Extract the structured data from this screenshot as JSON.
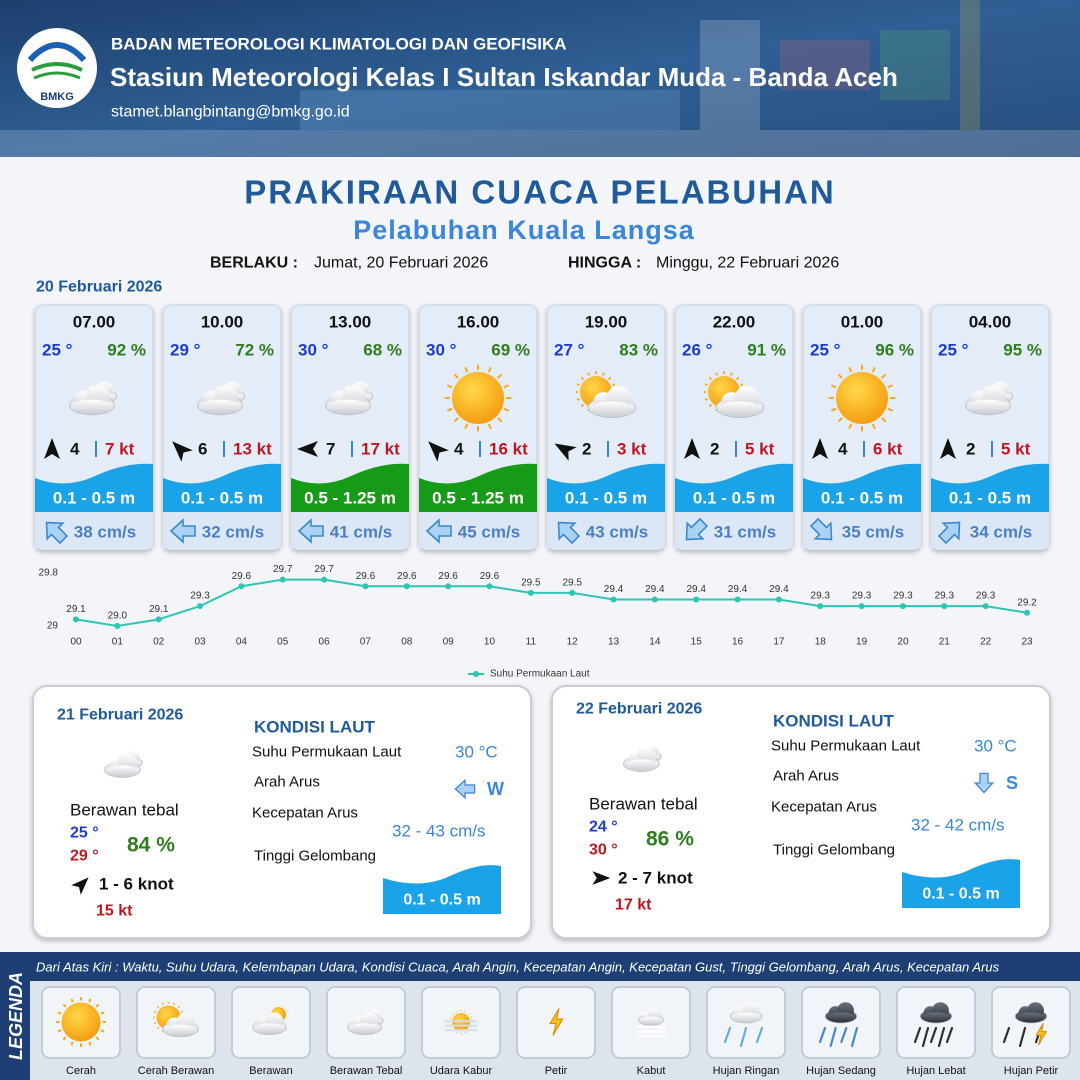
{
  "header": {
    "logo_text": "BMKG",
    "agency": "BADAN METEOROLOGI KLIMATOLOGI DAN GEOFISIKA",
    "station": "Stasiun Meteorologi Kelas I Sultan Iskandar Muda - Banda Aceh",
    "email": "stamet.blangbintang@bmkg.go.id"
  },
  "title": "PRAKIRAAN CUACA PELABUHAN",
  "port": "Pelabuhan Kuala Langsa",
  "validity": {
    "from_label": "BERLAKU :",
    "from": "Jumat, 20 Februari 2026",
    "to_label": "HINGGA :",
    "to": "Minggu, 22 Februari 2026"
  },
  "day1": {
    "date": "20 Februari 2026",
    "slots": [
      {
        "time": "07.00",
        "temp": "25 °",
        "humidity": "92 %",
        "wind": "4",
        "gust": "7 kt",
        "wave": "0.1 - 0.5 m",
        "wave_color": "#1aa3e8",
        "current": "38 cm/s"
      },
      {
        "time": "10.00",
        "temp": "29 °",
        "humidity": "72 %",
        "wind": "6",
        "gust": "13 kt",
        "wave": "0.1 - 0.5 m",
        "wave_color": "#1aa3e8",
        "current": "32 cm/s"
      },
      {
        "time": "13.00",
        "temp": "30 °",
        "humidity": "68 %",
        "wind": "7",
        "gust": "17 kt",
        "wave": "0.5 - 1.25 m",
        "wave_color": "#179a17",
        "current": "41 cm/s"
      },
      {
        "time": "16.00",
        "temp": "30 °",
        "humidity": "69 %",
        "wind": "4",
        "gust": "16 kt",
        "wave": "0.5 - 1.25 m",
        "wave_color": "#179a17",
        "current": "45 cm/s"
      },
      {
        "time": "19.00",
        "temp": "27 °",
        "humidity": "83 %",
        "wind": "2",
        "gust": "3 kt",
        "wave": "0.1 - 0.5 m",
        "wave_color": "#1aa3e8",
        "current": "43 cm/s"
      },
      {
        "time": "22.00",
        "temp": "26 °",
        "humidity": "91 %",
        "wind": "2",
        "gust": "5 kt",
        "wave": "0.1 - 0.5 m",
        "wave_color": "#1aa3e8",
        "current": "31 cm/s"
      },
      {
        "time": "01.00",
        "temp": "25 °",
        "humidity": "96 %",
        "wind": "4",
        "gust": "6 kt",
        "wave": "0.1 - 0.5 m",
        "wave_color": "#1aa3e8",
        "current": "35 cm/s"
      },
      {
        "time": "04.00",
        "temp": "25 °",
        "humidity": "95 %",
        "wind": "2",
        "gust": "5 kt",
        "wave": "0.1 - 0.5 m",
        "wave_color": "#1aa3e8",
        "current": "34 cm/s"
      }
    ]
  },
  "chart_data": {
    "type": "line",
    "categories": [
      "00",
      "01",
      "02",
      "03",
      "04",
      "05",
      "06",
      "07",
      "08",
      "09",
      "10",
      "11",
      "12",
      "13",
      "14",
      "15",
      "16",
      "17",
      "18",
      "19",
      "20",
      "21",
      "22",
      "23"
    ],
    "series": [
      {
        "name": "Suhu Permukaan Laut",
        "color": "#2ec4b6",
        "values": [
          29.1,
          29.0,
          29.1,
          29.3,
          29.6,
          29.7,
          29.7,
          29.6,
          29.6,
          29.6,
          29.6,
          29.5,
          29.5,
          29.4,
          29.4,
          29.4,
          29.4,
          29.4,
          29.3,
          29.3,
          29.3,
          29.3,
          29.3,
          29.2
        ],
        "value_labels": [
          "29.1",
          "29.0",
          "29.1",
          "29.3",
          "29.6",
          "29.7",
          "29.7",
          "29.6",
          "29.6",
          "29.6",
          "29.6",
          "29.5",
          "29.5",
          "29.4",
          "29.4",
          "29.4",
          "29.4",
          "29.4",
          "29.3",
          "29.3",
          "29.3",
          "29.3",
          "29.3",
          "29.2"
        ]
      }
    ],
    "ylim": [
      29,
      29.8
    ],
    "yticks": [
      29,
      29.8
    ]
  },
  "days": [
    {
      "date": "21 Februari 2026",
      "condition": "Berawan tebal",
      "temp_min": "25 °",
      "temp_max": "29 °",
      "humidity": "84 %",
      "wind": "1 - 6 knot",
      "gust": "15 kt",
      "sea_title": "KONDISI LAUT",
      "sst_label": "Suhu Permukaan Laut",
      "sst": "30 °C",
      "current_dir_label": "Arah Arus",
      "current_dir": "W",
      "current_speed_label": "Kecepatan Arus",
      "current_speed": "32  - 43 cm/s",
      "wave_label": "Tinggi Gelombang",
      "wave": "0.1 - 0.5 m"
    },
    {
      "date": "22 Februari 2026",
      "condition": "Berawan tebal",
      "temp_min": "24 °",
      "temp_max": "30 °",
      "humidity": "86 %",
      "wind": "2 - 7 knot",
      "gust": "17 kt",
      "sea_title": "KONDISI LAUT",
      "sst_label": "Suhu Permukaan Laut",
      "sst": "30 °C",
      "current_dir_label": "Arah Arus",
      "current_dir": "S",
      "current_speed_label": "Kecepatan Arus",
      "current_speed": "32 - 42 cm/s",
      "wave_label": "Tinggi Gelombang",
      "wave": "0.1 - 0.5 m"
    }
  ],
  "legend": {
    "title": "LEGENDA",
    "description": "Dari Atas Kiri : Waktu, Suhu Udara, Kelembapan Udara, Kondisi Cuaca, Arah Angin, Kecepatan Angin, Kecepatan Gust, Tinggi Gelombang, Arah Arus, Kecepatan Arus",
    "items": [
      "Cerah",
      "Cerah Berawan",
      "Berawan",
      "Berawan Tebal",
      "Udara Kabur",
      "Petir",
      "Kabut",
      "Hujan Ringan",
      "Hujan Sedang",
      "Hujan Lebat",
      "Hujan Petir"
    ]
  }
}
